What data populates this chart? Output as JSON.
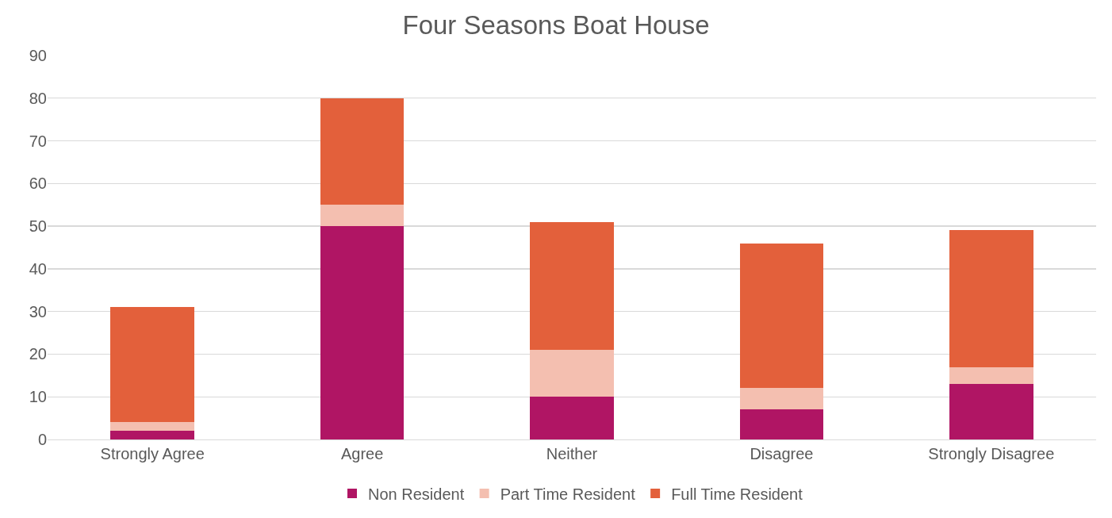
{
  "chart_data": {
    "type": "bar",
    "title": "Four Seasons Boat House",
    "categories": [
      "Strongly Agree",
      "Agree",
      "Neither",
      "Disagree",
      "Strongly Disagree"
    ],
    "stacked": true,
    "series": [
      {
        "name": "Non Resident",
        "color": "#b01564",
        "values": [
          2,
          50,
          10,
          7,
          13
        ]
      },
      {
        "name": "Part Time Resident",
        "color": "#f4bfb0",
        "values": [
          2,
          5,
          11,
          5,
          4
        ]
      },
      {
        "name": "Full Time Resident",
        "color": "#e3603b",
        "values": [
          27,
          25,
          30,
          34,
          32
        ]
      }
    ],
    "ylim": [
      0,
      90
    ],
    "yticks": [
      0,
      10,
      20,
      30,
      40,
      50,
      60,
      70,
      80,
      90
    ],
    "grid": "y",
    "legend": "bottom"
  }
}
